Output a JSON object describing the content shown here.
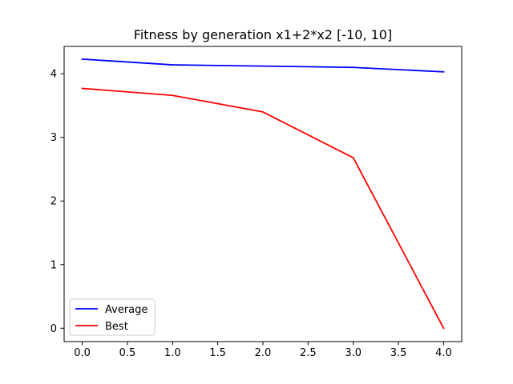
{
  "chart_data": {
    "type": "line",
    "title": "Fitness by generation x1+2*x2 [-10, 10]",
    "xlabel": "",
    "ylabel": "",
    "x": [
      0,
      1,
      2,
      3,
      4
    ],
    "xlim": [
      -0.2,
      4.2
    ],
    "ylim": [
      -0.21,
      4.43
    ],
    "xticks": [
      0.0,
      0.5,
      1.0,
      1.5,
      2.0,
      2.5,
      3.0,
      3.5,
      4.0
    ],
    "xtick_labels": [
      "0.0",
      "0.5",
      "1.0",
      "1.5",
      "2.0",
      "2.5",
      "3.0",
      "3.5",
      "4.0"
    ],
    "yticks": [
      0,
      1,
      2,
      3,
      4
    ],
    "ytick_labels": [
      "0",
      "1",
      "2",
      "3",
      "4"
    ],
    "grid": false,
    "legend_position": "lower-left",
    "series": [
      {
        "name": "Average",
        "color": "#0000ff",
        "values": [
          4.23,
          4.14,
          4.12,
          4.1,
          4.03
        ]
      },
      {
        "name": "Best",
        "color": "#ff0000",
        "values": [
          3.77,
          3.66,
          3.4,
          2.68,
          0.0
        ]
      }
    ]
  }
}
